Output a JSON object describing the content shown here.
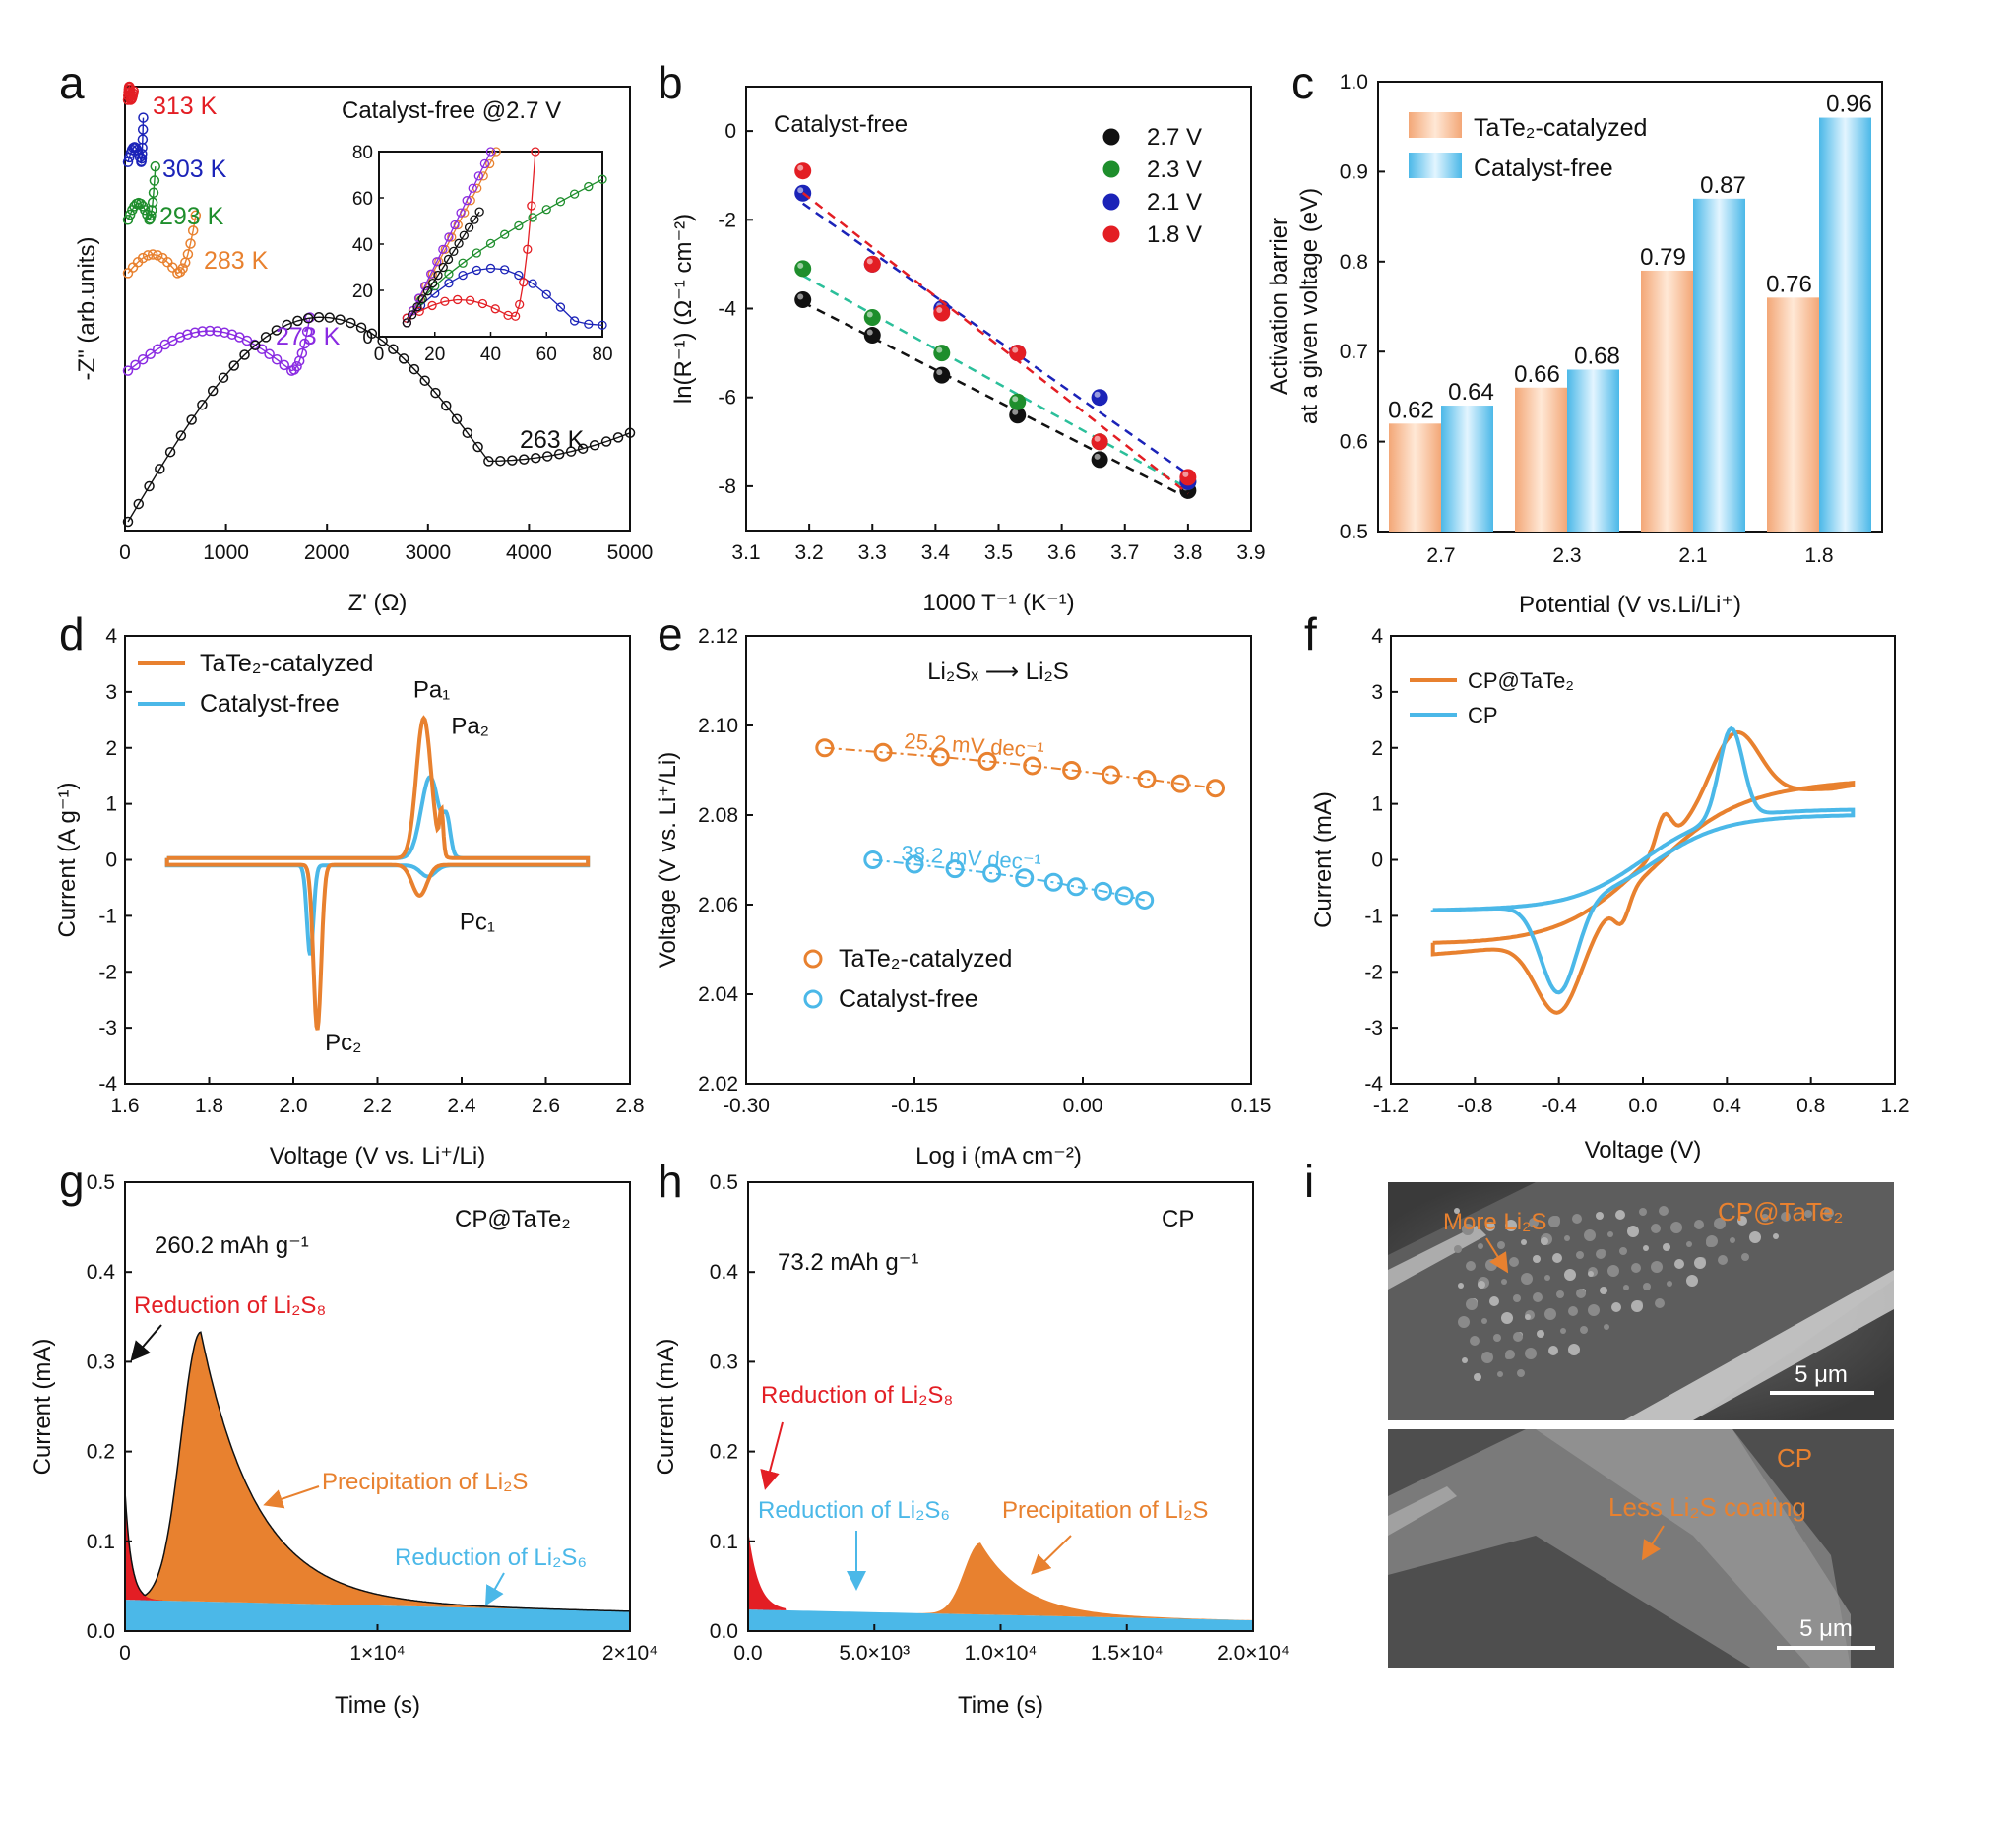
{
  "colors": {
    "orange": "#E8812F",
    "blue": "#4BB8E8",
    "red": "#E31E24",
    "green": "#1E8E2C",
    "darkblue": "#1B23B8",
    "purple": "#8A2BE2",
    "black": "#111111",
    "teal": "#2BBF9A"
  },
  "chart_data": [
    {
      "panel": "a",
      "type": "scatter",
      "annotation": "Catalyst-free @2.7 V",
      "xlabel": "Z' (Ω)",
      "ylabel": "-Z\" (arb.units)",
      "xlim": [
        0,
        5000
      ],
      "xticks": [
        "0",
        "1000",
        "2000",
        "3000",
        "4000",
        "5000"
      ],
      "series": [
        {
          "name": "313 K",
          "color": "#E31E24",
          "offset": 0.97,
          "arc_end": 55,
          "tail_x": 85,
          "tail_top": 0.99
        },
        {
          "name": "303 K",
          "color": "#1B23B8",
          "offset": 0.83,
          "arc_end": 160,
          "tail_x": 180,
          "tail_top": 0.93
        },
        {
          "name": "293 K",
          "color": "#1E8E2C",
          "offset": 0.7,
          "arc_end": 240,
          "tail_x": 300,
          "tail_top": 0.82
        },
        {
          "name": "283 K",
          "color": "#E8812F",
          "offset": 0.58,
          "arc_end": 520,
          "tail_x": 700,
          "tail_top": 0.71
        },
        {
          "name": "273 K",
          "color": "#8A2BE2",
          "offset": 0.36,
          "arc_end": 1650,
          "tail_x": 1830,
          "tail_top": 0.48
        },
        {
          "name": "263 K",
          "color": "#111111",
          "offset": 0.02,
          "arc_end": 3600,
          "tail_x": 5000,
          "tail_top": 0.22
        }
      ],
      "inset": {
        "xlim": [
          0,
          80
        ],
        "ylim": [
          0,
          80
        ],
        "xticks": [
          "0",
          "20",
          "40",
          "60",
          "80"
        ],
        "yticks": [
          "0",
          "20",
          "40",
          "60",
          "80"
        ]
      }
    },
    {
      "panel": "b",
      "type": "scatter",
      "annotation": "Catalyst-free",
      "xlabel": "1000 T⁻¹ (K⁻¹)",
      "ylabel": "ln(R⁻¹) (Ω⁻¹ cm⁻²)",
      "xlim": [
        3.1,
        3.9
      ],
      "ylim": [
        -9,
        1
      ],
      "xticks": [
        "3.1",
        "3.2",
        "3.3",
        "3.4",
        "3.5",
        "3.6",
        "3.7",
        "3.8",
        "3.9"
      ],
      "yticks": [
        "-8",
        "-6",
        "-4",
        "-2",
        "0"
      ],
      "x": [
        3.19,
        3.3,
        3.41,
        3.53,
        3.66,
        3.8
      ],
      "series": [
        {
          "name": "2.7 V",
          "color": "#111111",
          "values": [
            -3.8,
            -4.6,
            -5.5,
            -6.4,
            -7.4,
            -8.1
          ]
        },
        {
          "name": "2.3 V",
          "color": "#1E8E2C",
          "values": [
            -3.1,
            -4.2,
            -5.0,
            -6.1,
            -7.0,
            -7.9
          ]
        },
        {
          "name": "2.1 V",
          "color": "#1B23B8",
          "values": [
            -1.4,
            -3.0,
            -4.0,
            -5.0,
            -6.0,
            -7.9
          ]
        },
        {
          "name": "1.8 V",
          "color": "#E31E24",
          "values": [
            -0.9,
            -3.0,
            -4.1,
            -5.0,
            -7.0,
            -7.8
          ]
        }
      ]
    },
    {
      "panel": "c",
      "type": "bar",
      "xlabel": "Potential (V vs.Li/Li⁺)",
      "ylabel": "Activation barrier at a given voltage (eV)",
      "ylabel_lines": [
        "Activation barrier",
        "at a given voltage (eV)"
      ],
      "ylim": [
        0.5,
        1.0
      ],
      "yticks": [
        "0.5",
        "0.6",
        "0.7",
        "0.8",
        "0.9",
        "1.0"
      ],
      "categories": [
        "2.7",
        "2.3",
        "2.1",
        "1.8"
      ],
      "series": [
        {
          "name": "TaTe₂-catalyzed",
          "color": "#E8812F",
          "values": [
            0.62,
            0.66,
            0.79,
            0.76
          ],
          "labels": [
            "0.62",
            "0.66",
            "0.79",
            "0.76"
          ]
        },
        {
          "name": "Catalyst-free",
          "color": "#4BB8E8",
          "values": [
            0.64,
            0.68,
            0.87,
            0.96
          ],
          "labels": [
            "0.64",
            "0.68",
            "0.87",
            "0.96"
          ]
        }
      ]
    },
    {
      "panel": "d",
      "type": "line",
      "xlabel": "Voltage (V vs. Li⁺/Li)",
      "ylabel": "Current (A g⁻¹)",
      "xlim": [
        1.6,
        2.8
      ],
      "ylim": [
        -4,
        4
      ],
      "xticks": [
        "1.6",
        "1.8",
        "2.0",
        "2.2",
        "2.4",
        "2.6",
        "2.8"
      ],
      "yticks": [
        "-4",
        "-3",
        "-2",
        "-1",
        "0",
        "1",
        "2",
        "3",
        "4"
      ],
      "peak_labels": [
        "Pa₁",
        "Pa₂",
        "Pc₁",
        "Pc₂"
      ],
      "series": [
        {
          "name": "TaTe₂-catalyzed",
          "color": "#E8812F"
        },
        {
          "name": "Catalyst-free",
          "color": "#4BB8E8"
        }
      ]
    },
    {
      "panel": "e",
      "type": "scatter",
      "annotation": "Li₂Sₓ ⟶ Li₂S",
      "xlabel": "Log i (mA cm⁻²)",
      "ylabel": "Voltage (V vs. Li⁺/Li)",
      "xlim": [
        -0.3,
        0.15
      ],
      "ylim": [
        2.02,
        2.12
      ],
      "xticks": [
        "-0.30",
        "-0.15",
        "0.00",
        "0.15"
      ],
      "yticks": [
        "2.02",
        "2.04",
        "2.06",
        "2.08",
        "2.10",
        "2.12"
      ],
      "series": [
        {
          "name": "TaTe₂-catalyzed",
          "color": "#E8812F",
          "slope_label": "25.2 mV dec⁻¹",
          "x": [
            -0.23,
            -0.178,
            -0.127,
            -0.085,
            -0.045,
            -0.01,
            0.025,
            0.057,
            0.087,
            0.118
          ],
          "y": [
            2.095,
            2.094,
            2.093,
            2.092,
            2.091,
            2.09,
            2.089,
            2.088,
            2.087,
            2.086
          ]
        },
        {
          "name": "Catalyst-free",
          "color": "#4BB8E8",
          "slope_label": "38.2 mV dec⁻¹",
          "x": [
            -0.187,
            -0.15,
            -0.114,
            -0.081,
            -0.052,
            -0.026,
            -0.006,
            0.018,
            0.037,
            0.055
          ],
          "y": [
            2.07,
            2.069,
            2.068,
            2.067,
            2.066,
            2.065,
            2.064,
            2.063,
            2.062,
            2.061
          ]
        }
      ]
    },
    {
      "panel": "f",
      "type": "line",
      "xlabel": "Voltage (V)",
      "ylabel": "Current (mA)",
      "xlim": [
        -1.2,
        1.2
      ],
      "ylim": [
        -4,
        4
      ],
      "xticks": [
        "-1.2",
        "-0.8",
        "-0.4",
        "0.0",
        "0.4",
        "0.8",
        "1.2"
      ],
      "yticks": [
        "-4",
        "-3",
        "-2",
        "-1",
        "0",
        "1",
        "2",
        "3",
        "4"
      ],
      "series": [
        {
          "name": "CP@TaTe₂",
          "color": "#E8812F"
        },
        {
          "name": "CP",
          "color": "#4BB8E8"
        }
      ]
    },
    {
      "panel": "g",
      "type": "area",
      "annotation": "CP@TaTe₂",
      "capacity": "260.2 mAh g⁻¹",
      "xlabel": "Time (s)",
      "ylabel": "Current (mA)",
      "xlim": [
        0,
        20000
      ],
      "ylim": [
        0,
        0.5
      ],
      "xticks": [
        "0",
        "1×10⁴",
        "2×10⁴"
      ],
      "yticks": [
        "0.0",
        "0.1",
        "0.2",
        "0.3",
        "0.4",
        "0.5"
      ],
      "labels": [
        "Reduction of Li₂S₈",
        "Precipitation of Li₂S",
        "Reduction of Li₂S₆"
      ],
      "peak": {
        "x": 3000,
        "y": 0.335
      }
    },
    {
      "panel": "h",
      "type": "area",
      "annotation": "CP",
      "capacity": "73.2 mAh g⁻¹",
      "xlabel": "Time (s)",
      "ylabel": "Current (mA)",
      "xlim": [
        0,
        20000
      ],
      "ylim": [
        0,
        0.5
      ],
      "xticks": [
        "0.0",
        "5.0×10³",
        "1.0×10⁴",
        "1.5×10⁴",
        "2.0×10⁴"
      ],
      "yticks": [
        "0.0",
        "0.1",
        "0.2",
        "0.3",
        "0.4",
        "0.5"
      ],
      "labels": [
        "Reduction of Li₂S₈",
        "Reduction of Li₂S₆",
        "Precipitation of Li₂S"
      ],
      "peak": {
        "x": 9200,
        "y": 0.098
      }
    }
  ],
  "sem": {
    "top": {
      "label": "CP@TaTe₂",
      "note": "More Li₂S",
      "scale": "5 μm"
    },
    "bottom": {
      "label": "CP",
      "note": "Less Li₂S coating",
      "scale": "5 μm"
    }
  },
  "panel_letters": [
    "a",
    "b",
    "c",
    "d",
    "e",
    "f",
    "g",
    "h",
    "i"
  ]
}
